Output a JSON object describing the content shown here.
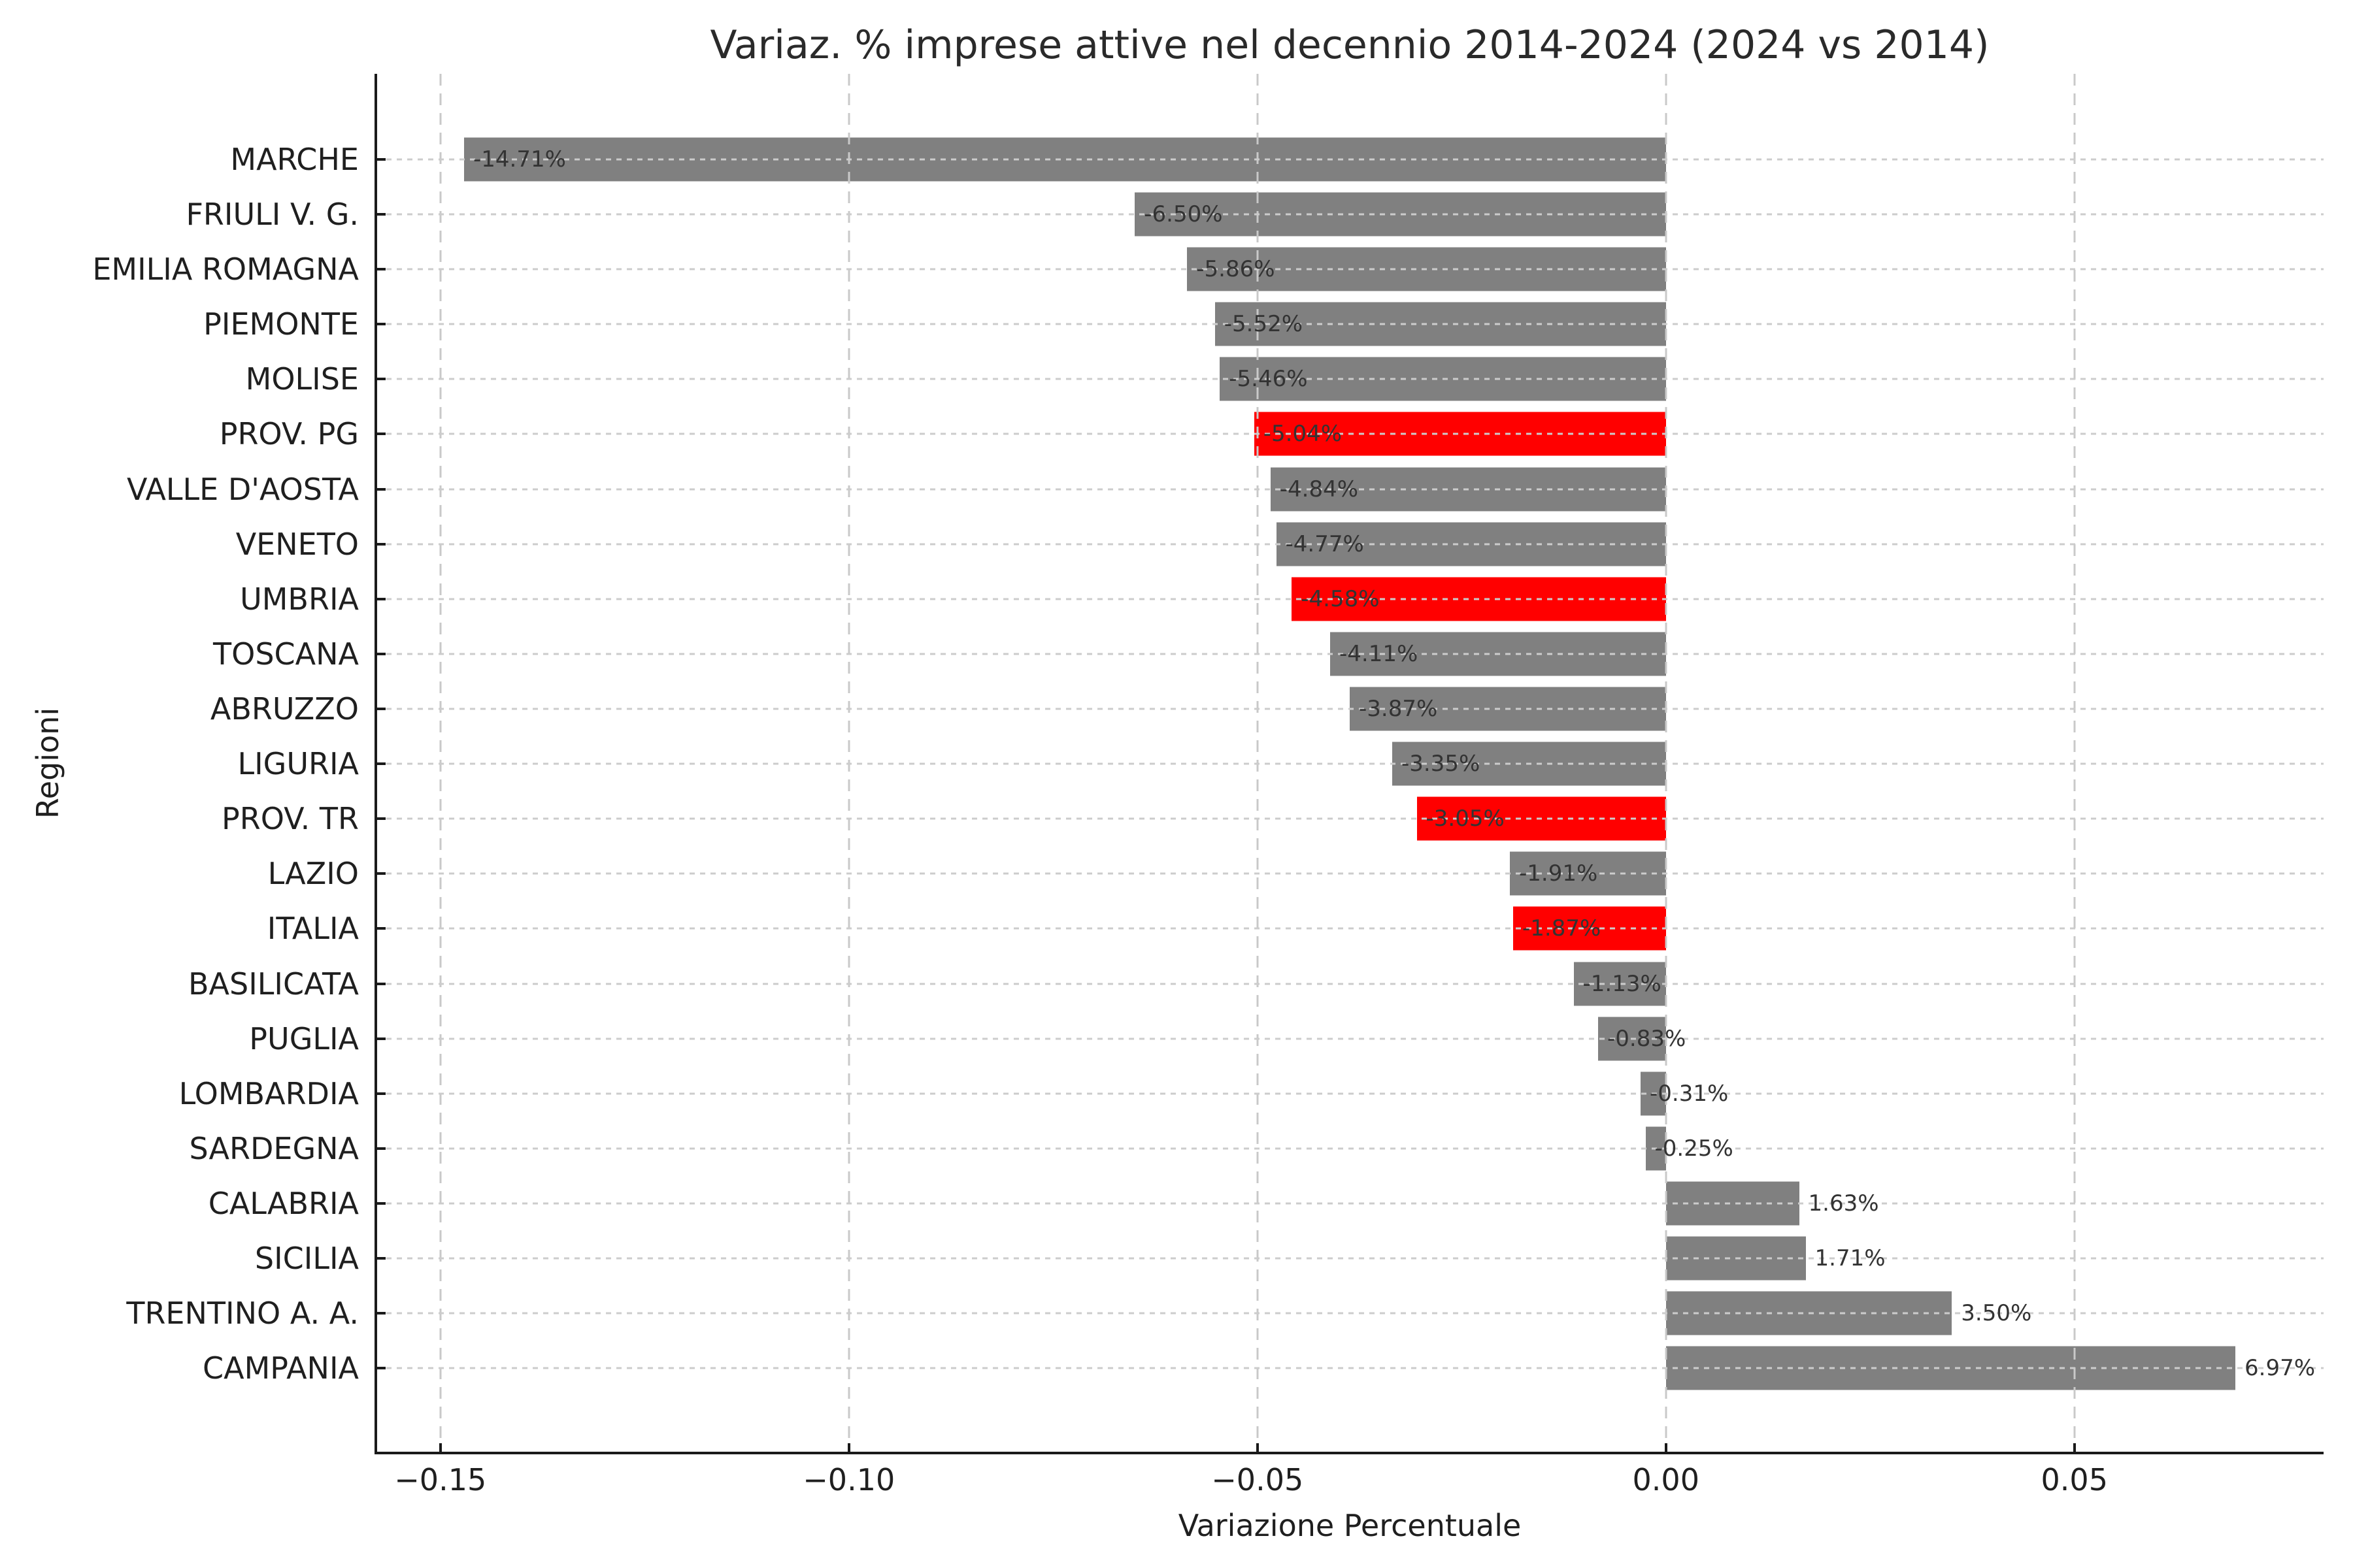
{
  "chart_data": {
    "type": "bar",
    "orientation": "horizontal",
    "title": "Variaz. % imprese attive nel decennio 2014-2024 (2024 vs 2014)",
    "xlabel": "Variazione Percentuale",
    "ylabel": "Regioni",
    "xlim": [
      -0.1579,
      0.0805
    ],
    "grid": true,
    "x_ticks": [
      -0.15,
      -0.1,
      -0.05,
      0.0,
      0.05
    ],
    "x_tick_labels": [
      "−0.15",
      "−0.10",
      "−0.05",
      "0.00",
      "0.05"
    ],
    "categories": [
      "MARCHE",
      "FRIULI V. G.",
      "EMILIA ROMAGNA",
      "PIEMONTE",
      "MOLISE",
      "PROV. PG",
      "VALLE D'AOSTA",
      "VENETO",
      "UMBRIA",
      "TOSCANA",
      "ABRUZZO",
      "LIGURIA",
      "PROV. TR",
      "LAZIO",
      "ITALIA",
      "BASILICATA",
      "PUGLIA",
      "LOMBARDIA",
      "SARDEGNA",
      "CALABRIA",
      "SICILIA",
      "TRENTINO A. A.",
      "CAMPANIA"
    ],
    "values": [
      -0.1471,
      -0.065,
      -0.0586,
      -0.0552,
      -0.0546,
      -0.0504,
      -0.0484,
      -0.0477,
      -0.0458,
      -0.0411,
      -0.0387,
      -0.0335,
      -0.0305,
      -0.0191,
      -0.0187,
      -0.0113,
      -0.0083,
      -0.0031,
      -0.0025,
      0.0163,
      0.0171,
      0.035,
      0.0697
    ],
    "bar_labels": [
      "-14.71%",
      "-6.50%",
      "-5.86%",
      "-5.52%",
      "-5.46%",
      "-5.04%",
      "-4.84%",
      "-4.77%",
      "-4.58%",
      "-4.11%",
      "-3.87%",
      "-3.35%",
      "-3.05%",
      "-1.91%",
      "-1.87%",
      "-1.13%",
      "-0.83%",
      "-0.31%",
      "-0.25%",
      "1.63%",
      "1.71%",
      "3.50%",
      "6.97%"
    ],
    "highlight": [
      false,
      false,
      false,
      false,
      false,
      true,
      false,
      false,
      true,
      false,
      false,
      false,
      true,
      false,
      true,
      false,
      false,
      false,
      false,
      false,
      false,
      false,
      false
    ],
    "highlighted_regions": [
      "PROV. PG",
      "UMBRIA",
      "PROV. TR",
      "ITALIA"
    ],
    "legend": "none",
    "colors": {
      "bar_default": "#808080",
      "bar_highlight": "#ff0000",
      "grid": "#c9c9c9",
      "axis": "#1a1a1a",
      "value_text": "#333333",
      "label_text": "#1f1f1f",
      "background": "#ffffff"
    }
  }
}
